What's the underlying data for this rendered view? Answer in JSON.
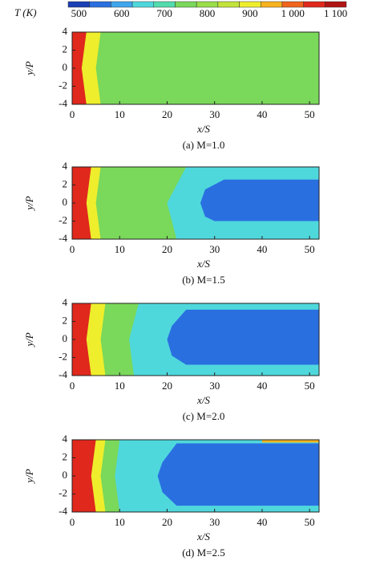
{
  "chart_data": {
    "type": "contour",
    "colorbar": {
      "title": "T (K)",
      "levels": [
        475,
        525,
        575,
        625,
        675,
        725,
        775,
        825,
        875,
        925,
        975,
        1025,
        1075,
        1125
      ],
      "colors": [
        "#1a3fb5",
        "#2a6fe0",
        "#3fa6ee",
        "#4fd8dc",
        "#52dcae",
        "#7ad85a",
        "#9ade48",
        "#c2e43a",
        "#eeee2c",
        "#f7b21e",
        "#f0641c",
        "#e0281c",
        "#b01414"
      ],
      "ticks": [
        500,
        600,
        700,
        800,
        900,
        {
          "value": 1000,
          "label": "1 000"
        },
        {
          "value": 1100,
          "label": "1 100"
        }
      ]
    },
    "panels": [
      {
        "caption": "(a) M=1.0",
        "xlabel": "x/S",
        "ylabel": "y/P",
        "xlim": [
          0,
          52
        ],
        "ylim": [
          -4,
          4
        ],
        "xticks": [
          0,
          10,
          20,
          30,
          40,
          50
        ],
        "yticks": [
          -4,
          -2,
          0,
          2,
          4
        ],
        "regions": [
          {
            "level": 725,
            "x": [
              0,
              52,
              52,
              0
            ],
            "y": [
              -4,
              -4,
              4,
              4
            ]
          },
          {
            "level": 875,
            "x": [
              0,
              6,
              5,
              6,
              0
            ],
            "y": [
              -4,
              -4,
              0,
              4,
              4
            ]
          },
          {
            "level": 1025,
            "x": [
              0,
              3,
              2,
              3,
              0
            ],
            "y": [
              -4,
              -4,
              0,
              4,
              4
            ]
          }
        ]
      },
      {
        "caption": "(b) M=1.5",
        "xlabel": "x/S",
        "ylabel": "y/P",
        "xlim": [
          0,
          52
        ],
        "ylim": [
          -4,
          4
        ],
        "xticks": [
          0,
          10,
          20,
          30,
          40,
          50
        ],
        "yticks": [
          -4,
          -2,
          0,
          2,
          4
        ],
        "regions": [
          {
            "level": 725,
            "x": [
              0,
              52,
              52,
              0
            ],
            "y": [
              -4,
              -4,
              4,
              4
            ]
          },
          {
            "level": 625,
            "x": [
              22,
              52,
              52,
              24,
              20,
              22
            ],
            "y": [
              -4,
              -4,
              4,
              4,
              0,
              -4
            ]
          },
          {
            "level": 525,
            "x": [
              30,
              52,
              52,
              32,
              28,
              27,
              28
            ],
            "y": [
              -2,
              -2,
              2.6,
              2.6,
              1.5,
              0,
              -1.5
            ]
          },
          {
            "level": 875,
            "x": [
              0,
              6,
              5,
              6,
              0
            ],
            "y": [
              -4,
              -4,
              0,
              4,
              4
            ]
          },
          {
            "level": 1025,
            "x": [
              0,
              4,
              3,
              4,
              0
            ],
            "y": [
              -4,
              -4,
              0,
              4,
              4
            ]
          }
        ]
      },
      {
        "caption": "(c) M=2.0",
        "xlabel": "x/S",
        "ylabel": "y/P",
        "xlim": [
          0,
          52
        ],
        "ylim": [
          -4,
          4
        ],
        "xticks": [
          0,
          10,
          20,
          30,
          40,
          50
        ],
        "yticks": [
          -4,
          -2,
          0,
          2,
          4
        ],
        "regions": [
          {
            "level": 725,
            "x": [
              0,
              52,
              52,
              0
            ],
            "y": [
              -4,
              -4,
              4,
              4
            ]
          },
          {
            "level": 625,
            "x": [
              14,
              52,
              52,
              14,
              12,
              13
            ],
            "y": [
              -4,
              -4,
              4,
              4,
              0,
              -4
            ]
          },
          {
            "level": 525,
            "x": [
              24,
              52,
              52,
              24,
              21,
              20,
              21
            ],
            "y": [
              -2.8,
              -2.8,
              3.3,
              3.3,
              1.5,
              0,
              -1.8
            ]
          },
          {
            "level": 875,
            "x": [
              0,
              7,
              6,
              7,
              0
            ],
            "y": [
              -4,
              -4,
              0,
              4,
              4
            ]
          },
          {
            "level": 1025,
            "x": [
              0,
              4,
              3,
              4,
              0
            ],
            "y": [
              -4,
              -4,
              0,
              4,
              4
            ]
          }
        ]
      },
      {
        "caption": "(d) M=2.5",
        "xlabel": "x/S",
        "ylabel": "y/P",
        "xlim": [
          0,
          52
        ],
        "ylim": [
          -4,
          4
        ],
        "xticks": [
          0,
          10,
          20,
          30,
          40,
          50
        ],
        "yticks": [
          -4,
          -2,
          0,
          2,
          4
        ],
        "regions": [
          {
            "level": 725,
            "x": [
              0,
              52,
              52,
              0
            ],
            "y": [
              -4,
              -4,
              4,
              4
            ]
          },
          {
            "level": 625,
            "x": [
              10,
              52,
              52,
              10,
              9,
              10
            ],
            "y": [
              -4,
              -4,
              4,
              4,
              0,
              -4
            ]
          },
          {
            "level": 525,
            "x": [
              22,
              52,
              52,
              22,
              19,
              18,
              19
            ],
            "y": [
              -3.3,
              -3.3,
              3.6,
              3.6,
              1.5,
              0,
              -1.8
            ]
          },
          {
            "level": 925,
            "x": [
              40,
              52,
              52,
              40
            ],
            "y": [
              3.7,
              3.7,
              4,
              4
            ]
          },
          {
            "level": 875,
            "x": [
              0,
              7,
              6,
              7,
              0
            ],
            "y": [
              -4,
              -4,
              0,
              4,
              4
            ]
          },
          {
            "level": 1025,
            "x": [
              0,
              5,
              4,
              5,
              0
            ],
            "y": [
              -4,
              -4,
              0,
              4,
              4
            ]
          }
        ]
      }
    ]
  }
}
